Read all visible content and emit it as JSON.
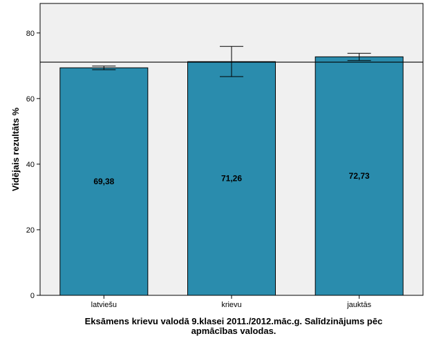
{
  "chart_data": {
    "type": "bar",
    "title_lines": [
      "Eksāmens krievu valodā 9.klasei 2011./2012.māc.g. Salīdzinājums pēc",
      "apmācības valodas."
    ],
    "xlabel": "",
    "ylabel": "Vidējais rezultāts %",
    "ylim": [
      0,
      89
    ],
    "yticks": [
      "0",
      "20",
      "40",
      "60",
      "80"
    ],
    "categories": [
      "latviešu",
      "krievu",
      "jauktās"
    ],
    "values": [
      69.38,
      71.26,
      72.73
    ],
    "value_labels": [
      "69,38",
      "71,26",
      "72,73"
    ],
    "error_low": [
      68.8,
      66.7,
      71.6
    ],
    "error_high": [
      69.9,
      75.9,
      73.8
    ],
    "reference_line": 71.1,
    "grid": false,
    "colors": {
      "bar": "#2a8cad",
      "plot_background": "#f0f0f0",
      "outline": "#000000"
    }
  }
}
